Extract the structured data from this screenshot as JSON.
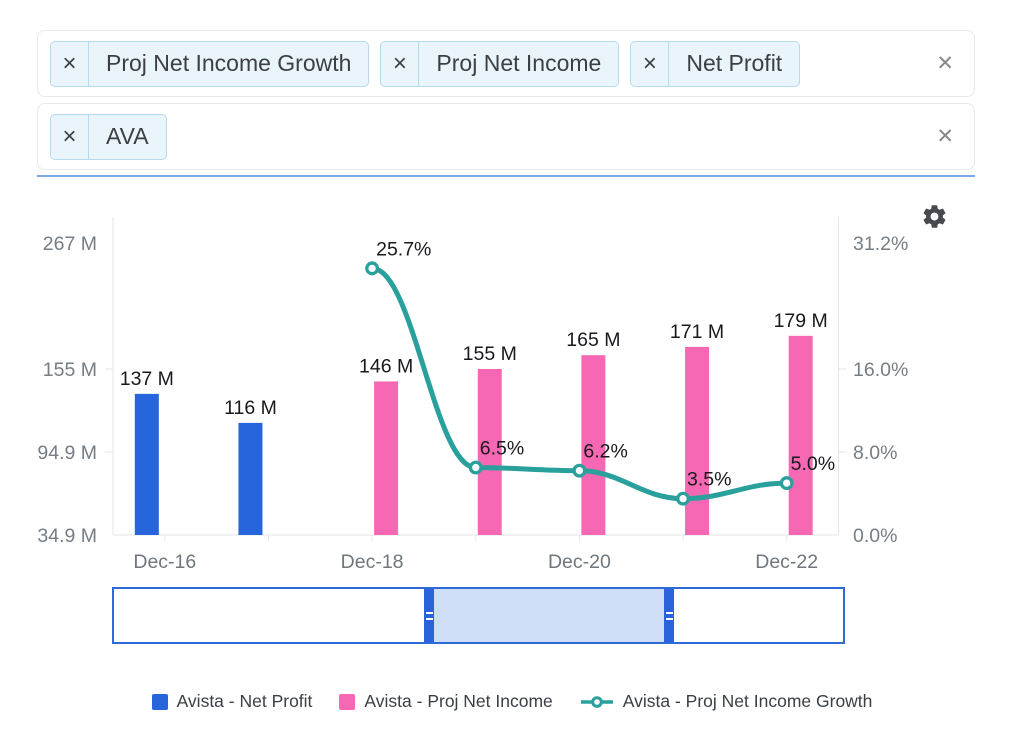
{
  "filters": {
    "chip_remove_icon": "×",
    "row_clear_icon": "✕",
    "rows": [
      {
        "chips": [
          "Proj Net Income Growth",
          "Proj Net Income",
          "Net Profit"
        ]
      },
      {
        "chips": [
          "AVA"
        ]
      }
    ]
  },
  "toolbar": {
    "settings_icon": "gear"
  },
  "colors": {
    "net_profit_blue": "#2765dc",
    "proj_net_income_pink": "#f668b3",
    "growth_line_teal": "#2aa09d",
    "slider_accent": "#2e6ad8",
    "slider_window_fill": "#cfddf6",
    "chip_background": "#eaf5fb",
    "chip_border": "#b5daf0",
    "focus_underline": "#7ba7ee"
  },
  "chart_data": {
    "type": "bar",
    "subtype": "dual-axis bar + line combo",
    "categories": [
      "Dec-16",
      "Dec-17",
      "Dec-18",
      "Dec-19",
      "Dec-20",
      "Dec-21",
      "Dec-22"
    ],
    "x_axis": {
      "visible_tick_labels": [
        "Dec-16",
        "Dec-18",
        "Dec-20",
        "Dec-22"
      ],
      "visible_tick_indices": [
        0,
        2,
        4,
        6
      ]
    },
    "left_axis": {
      "tick_labels": [
        "267 M",
        "155 M",
        "94.9 M",
        "34.9 M"
      ],
      "tick_values": [
        267,
        155,
        94.9,
        34.9
      ]
    },
    "right_axis": {
      "tick_labels": [
        "31.2%",
        "16.0%",
        "8.0%",
        "0.0%"
      ],
      "tick_values": [
        31.2,
        16.0,
        8.0,
        0.0
      ]
    },
    "series": [
      {
        "name": "Avista - Net Profit",
        "type": "bar",
        "color": "#2765dc",
        "y_axis": "left",
        "values": [
          137,
          116,
          null,
          null,
          null,
          null,
          null
        ],
        "data_labels": [
          "137 M",
          "116 M",
          null,
          null,
          null,
          null,
          null
        ]
      },
      {
        "name": "Avista - Proj Net Income",
        "type": "bar",
        "color": "#f668b3",
        "y_axis": "left",
        "values": [
          null,
          null,
          146,
          155,
          165,
          171,
          179
        ],
        "data_labels": [
          null,
          null,
          "146 M",
          "155 M",
          "165 M",
          "171 M",
          "179 M"
        ]
      },
      {
        "name": "Avista - Proj Net Income Growth",
        "type": "line",
        "color": "#2aa09d",
        "y_axis": "right",
        "values": [
          null,
          null,
          25.7,
          6.5,
          6.2,
          3.5,
          5.0
        ],
        "data_labels": [
          null,
          null,
          "25.7%",
          "6.5%",
          "6.2%",
          "3.5%",
          "5.0%"
        ]
      }
    ],
    "legend_position": "bottom",
    "grid": "off"
  }
}
